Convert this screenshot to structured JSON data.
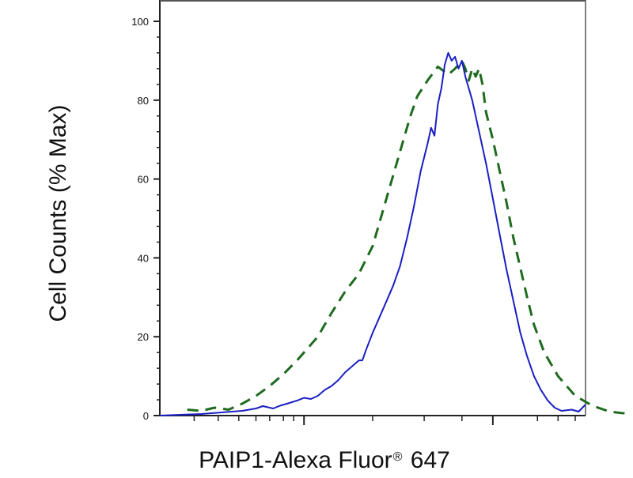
{
  "chart_data": {
    "type": "line",
    "title": "",
    "xlabel": "PAIP1-Alexa Fluor",
    "xlabel_superscript": "®",
    "xlabel_suffix": " 647",
    "ylabel": "Cell Counts (% Max)",
    "ylim": [
      0,
      104
    ],
    "xlim": [
      0,
      100
    ],
    "x_scale": "log (ticks unlabeled)",
    "yticks": [
      0,
      20,
      40,
      60,
      80,
      100
    ],
    "ytick_labels": [
      "0",
      "20",
      "40",
      "60",
      "80",
      "100"
    ],
    "grid": false,
    "legend": "none",
    "series": [
      {
        "style": "dashed",
        "color": "#1e6b1e",
        "points": [
          [
            8,
            1.5
          ],
          [
            12,
            1.2
          ],
          [
            16,
            2.0
          ],
          [
            20,
            1.5
          ],
          [
            24,
            3.0
          ],
          [
            28,
            5.0
          ],
          [
            32,
            7.5
          ],
          [
            36,
            10.5
          ],
          [
            40,
            14.0
          ],
          [
            44,
            18.0
          ],
          [
            46,
            20.0
          ],
          [
            50,
            26.0
          ],
          [
            54,
            31.5
          ],
          [
            58,
            36.0
          ],
          [
            62,
            43.0
          ],
          [
            65,
            52.0
          ],
          [
            68,
            61.0
          ],
          [
            71,
            70.0
          ],
          [
            73,
            76.0
          ],
          [
            75,
            81.0
          ],
          [
            78,
            85.0
          ],
          [
            81,
            88.5
          ],
          [
            84,
            86.5
          ],
          [
            86,
            88.0
          ],
          [
            88,
            90.0
          ],
          [
            89,
            88.0
          ],
          [
            90,
            85.0
          ],
          [
            91,
            88.0
          ],
          [
            92,
            86.0
          ],
          [
            93,
            88.0
          ],
          [
            94,
            84.0
          ],
          [
            95,
            77.0
          ],
          [
            97,
            70.0
          ],
          [
            99,
            62.0
          ],
          [
            101,
            54.0
          ],
          [
            103,
            45.0
          ],
          [
            105,
            37.5
          ],
          [
            107,
            30.0
          ],
          [
            109,
            23.0
          ],
          [
            112,
            16.0
          ],
          [
            116,
            10.0
          ],
          [
            121,
            5.0
          ],
          [
            126,
            2.5
          ],
          [
            131,
            1.0
          ],
          [
            136,
            0.5
          ]
        ]
      },
      {
        "style": "solid",
        "color": "#1a1fc4",
        "points": [
          [
            0,
            0
          ],
          [
            6,
            0.2
          ],
          [
            12,
            0.4
          ],
          [
            18,
            0.8
          ],
          [
            24,
            1.2
          ],
          [
            28,
            1.8
          ],
          [
            30,
            2.4
          ],
          [
            33,
            1.8
          ],
          [
            35,
            2.5
          ],
          [
            37,
            3.0
          ],
          [
            40,
            3.8
          ],
          [
            42,
            4.5
          ],
          [
            44,
            4.2
          ],
          [
            46,
            5.0
          ],
          [
            48,
            6.5
          ],
          [
            50,
            7.5
          ],
          [
            52,
            9.0
          ],
          [
            54,
            11.0
          ],
          [
            56,
            12.5
          ],
          [
            58,
            14.0
          ],
          [
            59,
            14.0
          ],
          [
            60,
            16.5
          ],
          [
            62,
            21.0
          ],
          [
            64,
            25.0
          ],
          [
            66,
            29.0
          ],
          [
            68,
            33.0
          ],
          [
            70,
            38.0
          ],
          [
            72,
            45.0
          ],
          [
            74,
            53.0
          ],
          [
            76,
            62.0
          ],
          [
            78,
            69.0
          ],
          [
            79,
            73.0
          ],
          [
            80,
            71.0
          ],
          [
            81,
            79.0
          ],
          [
            82,
            83.0
          ],
          [
            83,
            89.0
          ],
          [
            84,
            92.0
          ],
          [
            85,
            90.0
          ],
          [
            86,
            91.0
          ],
          [
            87,
            88.0
          ],
          [
            88,
            90.0
          ],
          [
            89,
            86.0
          ],
          [
            91,
            80.0
          ],
          [
            93,
            72.0
          ],
          [
            95,
            64.0
          ],
          [
            97,
            55.0
          ],
          [
            99,
            46.0
          ],
          [
            101,
            37.0
          ],
          [
            103,
            29.0
          ],
          [
            105,
            21.0
          ],
          [
            107,
            15.0
          ],
          [
            109,
            10.0
          ],
          [
            111,
            6.5
          ],
          [
            113,
            3.8
          ],
          [
            115,
            2.0
          ],
          [
            117,
            1.2
          ],
          [
            120,
            1.5
          ],
          [
            122,
            1.0
          ],
          [
            124,
            2.8
          ]
        ]
      }
    ]
  }
}
